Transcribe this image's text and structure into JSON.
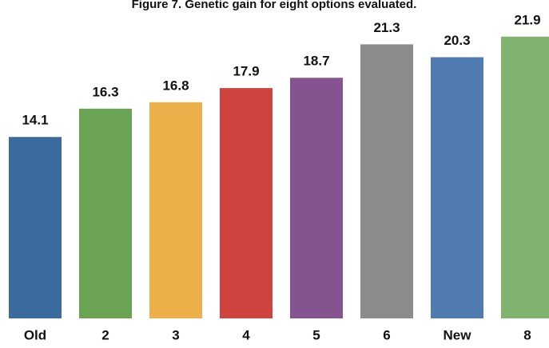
{
  "chart_data": {
    "type": "bar",
    "title": "Figure 7.  Genetic gain for eight options evaluated.",
    "categories": [
      "Old",
      "2",
      "3",
      "4",
      "5",
      "6",
      "New",
      "8"
    ],
    "values": [
      14.1,
      16.3,
      16.8,
      17.9,
      18.7,
      21.3,
      20.3,
      21.9
    ],
    "colors": [
      "#3b6a9e",
      "#6aa354",
      "#ecaf4a",
      "#cf4340",
      "#845390",
      "#8c8c8c",
      "#507bb0",
      "#80b36e"
    ],
    "ylim": [
      0,
      24
    ]
  }
}
